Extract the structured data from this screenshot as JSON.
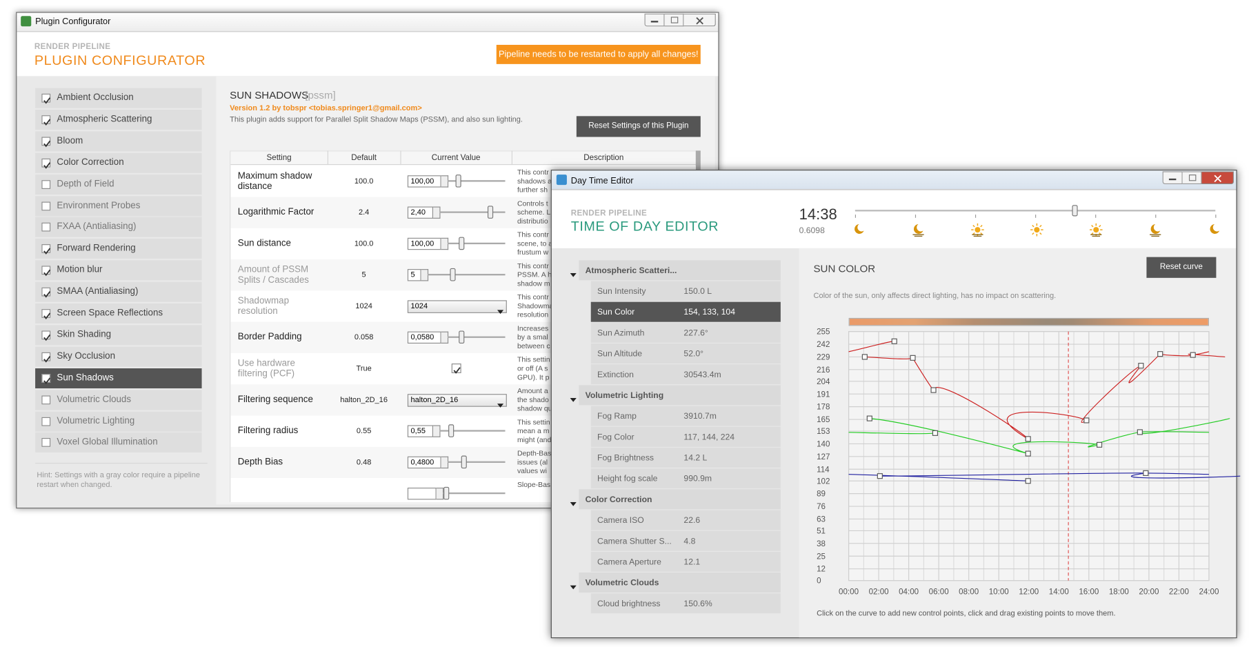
{
  "plugin_configurator": {
    "window_title": "Plugin Configurator",
    "header": {
      "subtitle": "RENDER PIPELINE",
      "title": "PLUGIN CONFIGURATOR",
      "notice": "Pipeline needs to be restarted to apply all changes!"
    },
    "plugins": [
      {
        "name": "Ambient Occlusion",
        "enabled": true
      },
      {
        "name": "Atmospheric Scattering",
        "enabled": true
      },
      {
        "name": "Bloom",
        "enabled": true
      },
      {
        "name": "Color Correction",
        "enabled": true
      },
      {
        "name": "Depth of Field",
        "enabled": false
      },
      {
        "name": "Environment Probes",
        "enabled": false
      },
      {
        "name": "FXAA (Antialiasing)",
        "enabled": false
      },
      {
        "name": "Forward Rendering",
        "enabled": true
      },
      {
        "name": "Motion blur",
        "enabled": true
      },
      {
        "name": "SMAA (Antialiasing)",
        "enabled": true
      },
      {
        "name": "Screen Space Reflections",
        "enabled": true
      },
      {
        "name": "Skin Shading",
        "enabled": true
      },
      {
        "name": "Sky Occlusion",
        "enabled": true
      },
      {
        "name": "Sun Shadows",
        "enabled": true,
        "selected": true
      },
      {
        "name": "Volumetric Clouds",
        "enabled": false
      },
      {
        "name": "Volumetric Lighting",
        "enabled": false
      },
      {
        "name": "Voxel Global Illumination",
        "enabled": false
      }
    ],
    "hint": "Hint: Settings with a gray color require a pipeline restart when changed.",
    "plugin": {
      "name": "SUN SHADOWS",
      "id": "[pssm]",
      "version": "Version 1.2 by tobspr <tobias.springer1@gmail.com>",
      "description": "This plugin adds support for Parallel Split Shadow Maps (PSSM), and also sun lighting.",
      "reset_button": "Reset Settings of this Plugin"
    },
    "table": {
      "columns": [
        "Setting",
        "Default",
        "Current Value",
        "Description"
      ],
      "rows": [
        {
          "setting": "Maximum shadow distance",
          "default": "100.0",
          "control": "slider",
          "current": "100,00",
          "description": [
            "This contr",
            "shadows a",
            "further sh"
          ]
        },
        {
          "setting": "Logarithmic Factor",
          "default": "2.4",
          "control": "slider",
          "current": "2,40",
          "description": [
            "Controls t",
            "scheme. L",
            "distributio"
          ]
        },
        {
          "setting": "Sun distance",
          "default": "100.0",
          "control": "slider",
          "current": "100,00",
          "description": [
            "This contr",
            "scene, to a",
            "frustum w"
          ]
        },
        {
          "setting": "Amount of PSSM Splits / Cascades",
          "default": "5",
          "control": "slider",
          "current": "5",
          "restart": true,
          "description": [
            "This contr",
            "PSSM. A h",
            "shadow m"
          ]
        },
        {
          "setting": "Shadowmap resolution",
          "default": "1024",
          "control": "dropdown",
          "current": "1024",
          "restart": true,
          "description": [
            "This contr",
            "Shadowma",
            "resolution"
          ]
        },
        {
          "setting": "Border Padding",
          "default": "0.058",
          "control": "slider",
          "current": "0,0580",
          "description": [
            "Increases",
            "by a smal",
            "between c"
          ]
        },
        {
          "setting": "Use hardware filtering (PCF)",
          "default": "True",
          "control": "checkbox",
          "current": true,
          "restart": true,
          "description": [
            "This settin",
            "or off (A s",
            "GPU). It p"
          ]
        },
        {
          "setting": "Filtering sequence",
          "default": "halton_2D_16",
          "control": "dropdown",
          "current": "halton_2D_16",
          "description": [
            "Amount a",
            "the shado",
            "shadow qu"
          ]
        },
        {
          "setting": "Filtering radius",
          "default": "0.55",
          "control": "slider",
          "current": "0,55",
          "description": [
            "This settin",
            "mean a m",
            "might (and"
          ]
        },
        {
          "setting": "Depth Bias",
          "default": "0.48",
          "control": "slider",
          "current": "0,4800",
          "description": [
            "Depth-Bas",
            "issues (al",
            "values wi"
          ]
        },
        {
          "description": [
            "Slope-Bas"
          ]
        }
      ]
    }
  },
  "day_time_editor": {
    "window_title": "Day Time Editor",
    "header": {
      "subtitle": "RENDER PIPELINE",
      "title": "TIME OF DAY EDITOR"
    },
    "time": "14:38",
    "time_value": 0.6098,
    "groups": [
      {
        "name": "Atmospheric Scatteri...",
        "settings": [
          {
            "name": "Sun Intensity",
            "value": "150.0 L"
          },
          {
            "name": "Sun Color",
            "value": "154, 133, 104",
            "selected": true
          },
          {
            "name": "Sun Azimuth",
            "value": "227.6°"
          },
          {
            "name": "Sun Altitude",
            "value": "52.0°"
          },
          {
            "name": "Extinction",
            "value": "30543.4m"
          }
        ]
      },
      {
        "name": "Volumetric Lighting",
        "settings": [
          {
            "name": "Fog Ramp",
            "value": "3910.7m"
          },
          {
            "name": "Fog Color",
            "value": "117, 144, 224"
          },
          {
            "name": "Fog Brightness",
            "value": "14.2 L"
          },
          {
            "name": "Height fog scale",
            "value": "990.9m"
          }
        ]
      },
      {
        "name": "Color Correction",
        "settings": [
          {
            "name": "Camera ISO",
            "value": "22.6"
          },
          {
            "name": "Camera Shutter S...",
            "value": "4.8"
          },
          {
            "name": "Camera Aperture",
            "value": "12.1"
          }
        ]
      },
      {
        "name": "Volumetric Clouds",
        "settings": [
          {
            "name": "Cloud brightness",
            "value": "150.6%"
          }
        ]
      }
    ],
    "curve": {
      "title": "SUN COLOR",
      "description": "Color of the sun, only affects direct lighting, has no impact on scattering.",
      "reset_button": "Reset curve",
      "hint": "Click on the curve to add new control points, click and drag existing points to move them."
    }
  },
  "chart_data": {
    "type": "line",
    "xlim": [
      0,
      24
    ],
    "ylim": [
      0,
      255
    ],
    "xticks": [
      {
        "value": 0,
        "label": "00:00"
      },
      {
        "value": 2,
        "label": "02:00"
      },
      {
        "value": 4,
        "label": "04:00"
      },
      {
        "value": 6,
        "label": "06:00"
      },
      {
        "value": 8,
        "label": "08:00"
      },
      {
        "value": 10,
        "label": "10:00"
      },
      {
        "value": 12,
        "label": "12:00"
      },
      {
        "value": 14,
        "label": "14:00"
      },
      {
        "value": 16,
        "label": "16:00"
      },
      {
        "value": 18,
        "label": "18:00"
      },
      {
        "value": 20,
        "label": "20:00"
      },
      {
        "value": 22,
        "label": "22:00"
      },
      {
        "value": 24,
        "label": "24:00"
      }
    ],
    "yticks": [
      0,
      12,
      25,
      38,
      51,
      63,
      76,
      89,
      102,
      114,
      127,
      140,
      153,
      165,
      178,
      191,
      204,
      216,
      229,
      242,
      255
    ],
    "grid": true,
    "series": [
      {
        "color": "#cc2020",
        "x": [
          1.07,
          3.04,
          4.27,
          5.65,
          11.95,
          15.84,
          19.47,
          20.75,
          22.93
        ],
        "values": [
          229,
          245,
          228,
          195,
          145,
          164,
          220,
          232,
          231
        ]
      },
      {
        "color": "#22cc22",
        "x": [
          1.39,
          5.76,
          11.95,
          16.7,
          19.4
        ],
        "values": [
          166,
          151,
          130,
          139,
          152
        ]
      },
      {
        "color": "#2020a0",
        "x": [
          2.08,
          11.95,
          19.79
        ],
        "values": [
          107,
          102,
          110
        ]
      }
    ]
  }
}
